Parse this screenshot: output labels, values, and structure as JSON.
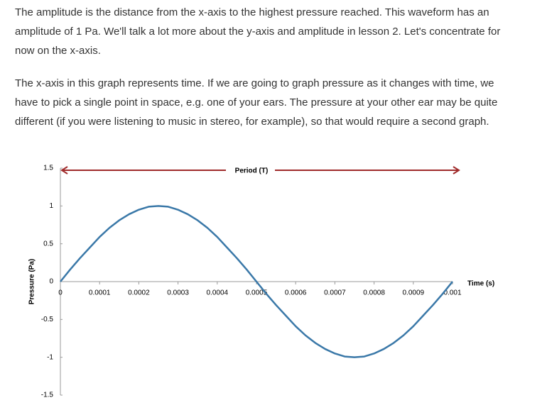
{
  "paragraphs": [
    [
      "The amplitude is the distance from the x-axis to the highest pressure reached. This waveform has an",
      "amplitude of 1 Pa. We'll talk a lot more about the y-axis and amplitude in lesson 2. Let's concentrate for",
      "now on the x-axis."
    ],
    [
      "The x-axis in this graph represents time. If we are going to graph pressure as it changes with time, we",
      "have to pick a single point in space, e.g. one of your ears. The pressure at your other ear may be quite",
      "different (if you were listening to music in stereo, for example), so that would require a second graph."
    ]
  ],
  "chart_data": {
    "type": "line",
    "x_label": "Time (s)",
    "y_label": "Pressure (Pa)",
    "annotation": "Period (T)",
    "x": [
      0,
      2.5e-05,
      5e-05,
      7.5e-05,
      0.0001,
      0.000125,
      0.00015,
      0.000175,
      0.0002,
      0.000225,
      0.00025,
      0.000275,
      0.0003,
      0.000325,
      0.00035,
      0.000375,
      0.0004,
      0.000425,
      0.00045,
      0.000475,
      0.0005,
      0.000525,
      0.00055,
      0.000575,
      0.0006,
      0.000625,
      0.00065,
      0.000675,
      0.0007,
      0.000725,
      0.00075,
      0.000775,
      0.0008,
      0.000825,
      0.00085,
      0.000875,
      0.0009,
      0.000925,
      0.00095,
      0.000975,
      0.001
    ],
    "values": [
      0,
      0.16,
      0.31,
      0.45,
      0.59,
      0.71,
      0.81,
      0.89,
      0.95,
      0.99,
      1,
      0.99,
      0.95,
      0.89,
      0.81,
      0.71,
      0.59,
      0.45,
      0.31,
      0.16,
      0,
      -0.16,
      -0.31,
      -0.45,
      -0.59,
      -0.71,
      -0.81,
      -0.89,
      -0.95,
      -0.99,
      -1,
      -0.99,
      -0.95,
      -0.89,
      -0.81,
      -0.71,
      -0.59,
      -0.45,
      -0.31,
      -0.16,
      0
    ],
    "color": "#3a78a8",
    "annotation_color": "#a02b2b",
    "xlim": [
      0,
      0.001
    ],
    "ylim": [
      -1.5,
      1.5
    ],
    "xticks": [
      0,
      0.0001,
      0.0002,
      0.0003,
      0.0004,
      0.0005,
      0.0006,
      0.0007,
      0.0008,
      0.0009,
      0.001
    ],
    "yticks": [
      1.5,
      1,
      0.5,
      0,
      -0.5,
      -1,
      -1.5
    ]
  }
}
